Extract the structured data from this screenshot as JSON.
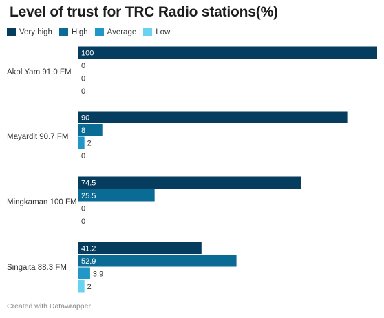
{
  "header": {
    "title": "Level of trust for TRC Radio stations(%)"
  },
  "legend": [
    {
      "label": "Very high",
      "color": "#063c5e"
    },
    {
      "label": "High",
      "color": "#0a6b94"
    },
    {
      "label": "Average",
      "color": "#2097c7"
    },
    {
      "label": "Low",
      "color": "#67d3f1"
    }
  ],
  "footer": {
    "credit": "Created with Datawrapper"
  },
  "chart_data": {
    "type": "bar",
    "orientation": "horizontal",
    "title": "Level of trust for TRC Radio stations(%)",
    "categories": [
      "Akol Yam 91.0 FM",
      "Mayardit 90.7 FM",
      "Mingkaman 100 FM",
      "Singaita 88.3 FM"
    ],
    "series": [
      {
        "name": "Very high",
        "values": [
          100,
          90,
          74.5,
          41.2
        ],
        "labels": [
          "100",
          "90",
          "74.5",
          "41.2"
        ]
      },
      {
        "name": "High",
        "values": [
          0,
          8,
          25.5,
          52.9
        ],
        "labels": [
          "0",
          "8",
          "25.5",
          "52.9"
        ]
      },
      {
        "name": "Average",
        "values": [
          0,
          2,
          0,
          3.9
        ],
        "labels": [
          "0",
          "2",
          "0",
          "3.9"
        ]
      },
      {
        "name": "Low",
        "values": [
          0,
          0,
          0,
          2
        ],
        "labels": [
          "0",
          "0",
          "0",
          "2"
        ]
      }
    ],
    "xlim": [
      0,
      100
    ],
    "grid": false,
    "legend_position": "top-left"
  }
}
